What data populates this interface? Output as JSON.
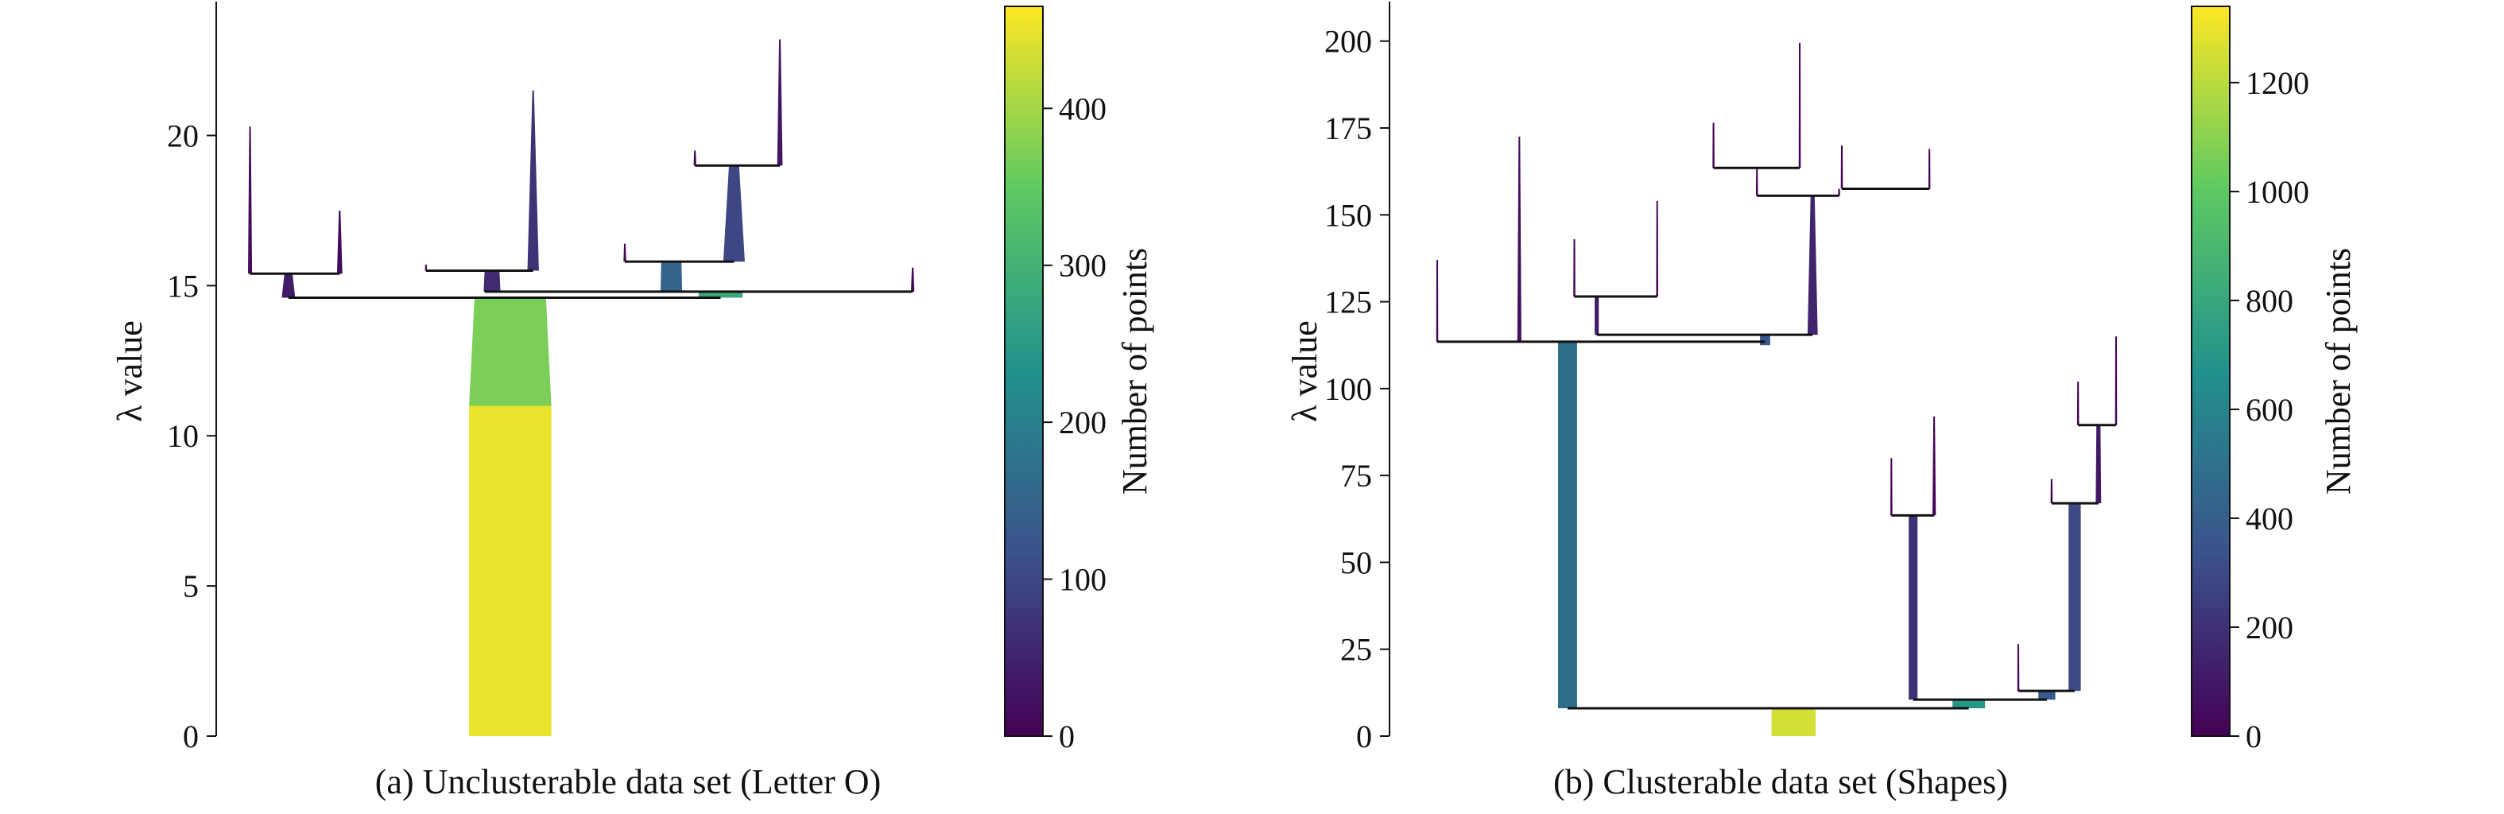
{
  "chart_data": [
    {
      "type": "condensed-tree",
      "caption": "(a) Unclusterable data set (Letter O)",
      "ylabel": "λ value",
      "colorbar_label": "Number of points",
      "ylim": [
        0,
        24.3
      ],
      "yticks": [
        0,
        5,
        10,
        15,
        20
      ],
      "colorbar_range": [
        0,
        465
      ],
      "colorbar_ticks": [
        0,
        100,
        200,
        300,
        400
      ],
      "colormap": [
        "#440154",
        "#3b528b",
        "#21918c",
        "#5ec962",
        "#fde725"
      ],
      "x_range": [
        0,
        100
      ],
      "bars": [
        {
          "x": 38.9,
          "y0": 0,
          "y1": 11,
          "w": 12.2,
          "w2": 12.2,
          "n": 450
        },
        {
          "x": 38.9,
          "y0": 11,
          "y1": 14.6,
          "w": 12.2,
          "w2": 10.6,
          "n": 370
        },
        {
          "x": 6.0,
          "y0": 14.6,
          "y1": 15.4,
          "w": 2.0,
          "w2": 1.2,
          "n": 40
        },
        {
          "x": 0.3,
          "y0": 15.4,
          "y1": 20.3,
          "w": 0.6,
          "w2": 0.1,
          "n": 15
        },
        {
          "x": 13.6,
          "y0": 15.4,
          "y1": 17.5,
          "w": 0.8,
          "w2": 0.1,
          "n": 15
        },
        {
          "x": 36.2,
          "y0": 14.8,
          "y1": 15.5,
          "w": 2.5,
          "w2": 2.2,
          "n": 60
        },
        {
          "x": 26.4,
          "y0": 15.5,
          "y1": 15.7,
          "w": 0.3,
          "w2": 0.1,
          "n": 10
        },
        {
          "x": 42.3,
          "y0": 15.5,
          "y1": 21.5,
          "w": 1.7,
          "w2": 0.2,
          "n": 70
        },
        {
          "x": 62.8,
          "y0": 14.8,
          "y1": 15.8,
          "w": 3.2,
          "w2": 3.0,
          "n": 150
        },
        {
          "x": 55.9,
          "y0": 15.8,
          "y1": 16.4,
          "w": 0.4,
          "w2": 0.1,
          "n": 10
        },
        {
          "x": 72.1,
          "y0": 15.8,
          "y1": 19.0,
          "w": 3.2,
          "w2": 1.5,
          "n": 100
        },
        {
          "x": 66.3,
          "y0": 19.0,
          "y1": 19.5,
          "w": 0.4,
          "w2": 0.1,
          "n": 10
        },
        {
          "x": 78.9,
          "y0": 19.0,
          "y1": 23.2,
          "w": 0.8,
          "w2": 0.1,
          "n": 30
        },
        {
          "x": 70.1,
          "y0": 14.6,
          "y1": 14.8,
          "w": 6.5,
          "w2": 6.5,
          "n": 280
        },
        {
          "x": 98.6,
          "y0": 14.8,
          "y1": 15.6,
          "w": 0.5,
          "w2": 0.1,
          "n": 10
        }
      ],
      "splits": [
        {
          "x0": 6.0,
          "x1": 70.1,
          "y": 14.6
        },
        {
          "x0": 35.1,
          "x1": 98.6,
          "y": 14.8
        },
        {
          "x0": 0.3,
          "x1": 13.6,
          "y": 15.4
        },
        {
          "x0": 26.4,
          "x1": 42.3,
          "y": 15.5
        },
        {
          "x0": 55.9,
          "x1": 72.1,
          "y": 15.8
        },
        {
          "x0": 66.3,
          "x1": 78.9,
          "y": 19.0
        }
      ]
    },
    {
      "type": "condensed-tree",
      "caption": "(b) Clusterable data set (Shapes)",
      "ylabel": "λ value",
      "colorbar_label": "Number of points",
      "ylim": [
        0,
        210
      ],
      "yticks": [
        0,
        25,
        50,
        75,
        100,
        125,
        150,
        175,
        200
      ],
      "colorbar_range": [
        0,
        1340
      ],
      "colorbar_ticks": [
        0,
        200,
        400,
        600,
        800,
        1000,
        1200
      ],
      "colormap": [
        "#440154",
        "#3b528b",
        "#21918c",
        "#5ec962",
        "#fde725"
      ],
      "x_range": [
        0,
        100
      ],
      "bars": [
        {
          "x": 52.5,
          "y0": 0,
          "y1": 8,
          "w": 6.5,
          "w2": 6.5,
          "n": 1250
        },
        {
          "x": 19.2,
          "y0": 8,
          "y1": 113.5,
          "w": 2.8,
          "w2": 2.8,
          "n": 480
        },
        {
          "x": 78.3,
          "y0": 8,
          "y1": 10.5,
          "w": 4.8,
          "w2": 4.8,
          "n": 700
        },
        {
          "x": 70.1,
          "y0": 10.5,
          "y1": 63.5,
          "w": 1.3,
          "w2": 1.3,
          "n": 200
        },
        {
          "x": 66.9,
          "y0": 63.5,
          "y1": 80,
          "w": 0.3,
          "w2": 0.1,
          "n": 10
        },
        {
          "x": 73.2,
          "y0": 63.5,
          "y1": 92,
          "w": 0.5,
          "w2": 0.1,
          "n": 15
        },
        {
          "x": 89.8,
          "y0": 10.5,
          "y1": 13,
          "w": 2.5,
          "w2": 2.5,
          "n": 380
        },
        {
          "x": 85.6,
          "y0": 13,
          "y1": 26.5,
          "w": 0.3,
          "w2": 0.1,
          "n": 10
        },
        {
          "x": 93.9,
          "y0": 13,
          "y1": 67,
          "w": 1.8,
          "w2": 1.8,
          "n": 300
        },
        {
          "x": 90.5,
          "y0": 67,
          "y1": 74,
          "w": 0.3,
          "w2": 0.1,
          "n": 10
        },
        {
          "x": 97.4,
          "y0": 67,
          "y1": 89.5,
          "w": 0.8,
          "w2": 0.6,
          "n": 100
        },
        {
          "x": 94.4,
          "y0": 89.5,
          "y1": 102,
          "w": 0.3,
          "w2": 0.1,
          "n": 10
        },
        {
          "x": 100.0,
          "y0": 89.5,
          "y1": 115,
          "w": 0.3,
          "w2": 0.1,
          "n": 10
        },
        {
          "x": 0.0,
          "y0": 113.5,
          "y1": 137,
          "w": 0.3,
          "w2": 0.1,
          "n": 10
        },
        {
          "x": 12.1,
          "y0": 113.5,
          "y1": 172.5,
          "w": 0.6,
          "w2": 0.1,
          "n": 60
        },
        {
          "x": 48.3,
          "y0": 112.5,
          "y1": 115.5,
          "w": 1.5,
          "w2": 1.5,
          "n": 380
        },
        {
          "x": 23.5,
          "y0": 115.5,
          "y1": 126.5,
          "w": 0.6,
          "w2": 0.6,
          "n": 100
        },
        {
          "x": 20.2,
          "y0": 126.5,
          "y1": 143,
          "w": 0.3,
          "w2": 0.1,
          "n": 10
        },
        {
          "x": 32.4,
          "y0": 126.5,
          "y1": 154,
          "w": 0.3,
          "w2": 0.1,
          "n": 10
        },
        {
          "x": 55.3,
          "y0": 115.5,
          "y1": 155.5,
          "w": 1.5,
          "w2": 0.6,
          "n": 150
        },
        {
          "x": 47.1,
          "y0": 155.5,
          "y1": 163.5,
          "w": 0.3,
          "w2": 0.1,
          "n": 10
        },
        {
          "x": 59.2,
          "y0": 155.5,
          "y1": 157.5,
          "w": 0.3,
          "w2": 0.1,
          "n": 10
        },
        {
          "x": 40.7,
          "y0": 163.5,
          "y1": 176.5,
          "w": 0.3,
          "w2": 0.1,
          "n": 10
        },
        {
          "x": 53.4,
          "y0": 163.5,
          "y1": 199.5,
          "w": 0.3,
          "w2": 0.1,
          "n": 10
        },
        {
          "x": 72.5,
          "y0": 157.5,
          "y1": 169,
          "w": 0.3,
          "w2": 0.1,
          "n": 10
        },
        {
          "x": 59.6,
          "y0": 157.5,
          "y1": 170,
          "w": 0.3,
          "w2": 0.1,
          "n": 10
        }
      ],
      "splits": [
        {
          "x0": 19.2,
          "x1": 78.3,
          "y": 8
        },
        {
          "x0": 70.1,
          "x1": 89.8,
          "y": 10.5
        },
        {
          "x0": 85.6,
          "x1": 93.9,
          "y": 13
        },
        {
          "x0": 66.9,
          "x1": 73.2,
          "y": 63.5
        },
        {
          "x0": 90.5,
          "x1": 97.4,
          "y": 67
        },
        {
          "x0": 94.4,
          "x1": 100.0,
          "y": 89.5
        },
        {
          "x0": 0.0,
          "x1": 48.3,
          "y": 113.5
        },
        {
          "x0": 23.5,
          "x1": 55.3,
          "y": 115.5
        },
        {
          "x0": 20.2,
          "x1": 32.4,
          "y": 126.5
        },
        {
          "x0": 47.1,
          "x1": 59.2,
          "y": 155.5
        },
        {
          "x0": 59.6,
          "x1": 72.5,
          "y": 157.5
        },
        {
          "x0": 40.7,
          "x1": 53.4,
          "y": 163.5
        }
      ]
    }
  ]
}
